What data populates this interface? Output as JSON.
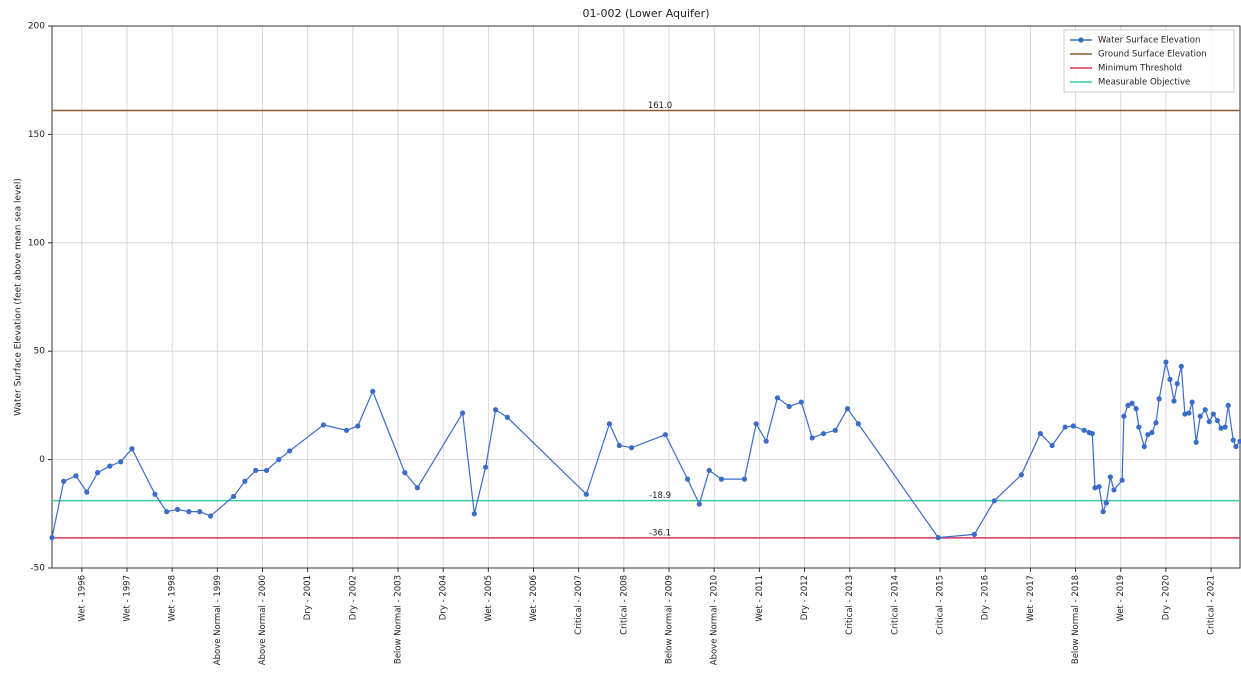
{
  "chart_data": {
    "type": "line",
    "title": "01-002 (Lower Aquifer)",
    "y_label": "Water Surface Elevation (feet above mean sea level)",
    "xlim": [
      1995.34,
      2021.64
    ],
    "ylim": [
      -50,
      200
    ],
    "yticks": [
      -50,
      0,
      50,
      100,
      150,
      200
    ],
    "grid": true,
    "legend": "upper right",
    "xticks": [
      {
        "value": 1996,
        "label": "Wet - 1996"
      },
      {
        "value": 1997,
        "label": "Wet - 1997"
      },
      {
        "value": 1998,
        "label": "Wet - 1998"
      },
      {
        "value": 1999,
        "label": "Above Normal - 1999"
      },
      {
        "value": 2000,
        "label": "Above Normal - 2000"
      },
      {
        "value": 2001,
        "label": "Dry - 2001"
      },
      {
        "value": 2002,
        "label": "Dry - 2002"
      },
      {
        "value": 2003,
        "label": "Below Normal - 2003"
      },
      {
        "value": 2004,
        "label": "Dry - 2004"
      },
      {
        "value": 2005,
        "label": "Wet - 2005"
      },
      {
        "value": 2006,
        "label": "Wet - 2006"
      },
      {
        "value": 2007,
        "label": "Critical - 2007"
      },
      {
        "value": 2008,
        "label": "Critical - 2008"
      },
      {
        "value": 2009,
        "label": "Below Normal - 2009"
      },
      {
        "value": 2010,
        "label": "Above Normal - 2010"
      },
      {
        "value": 2011,
        "label": "Wet - 2011"
      },
      {
        "value": 2012,
        "label": "Dry - 2012"
      },
      {
        "value": 2013,
        "label": "Critical - 2013"
      },
      {
        "value": 2014,
        "label": "Critical - 2014"
      },
      {
        "value": 2015,
        "label": "Critical - 2015"
      },
      {
        "value": 2016,
        "label": "Dry - 2016"
      },
      {
        "value": 2017,
        "label": "Wet - 2017"
      },
      {
        "value": 2018,
        "label": "Below Normal - 2018"
      },
      {
        "value": 2019,
        "label": "Wet - 2019"
      },
      {
        "value": 2020,
        "label": "Dry - 2020"
      },
      {
        "value": 2021,
        "label": "Critical - 2021"
      }
    ],
    "series": [
      {
        "name": "Water Surface Elevation",
        "color": "#3b6cc9",
        "x": [
          1995.34,
          1995.6,
          1995.87,
          1996.11,
          1996.35,
          1996.62,
          1996.86,
          1997.11,
          1997.62,
          1997.88,
          1998.12,
          1998.37,
          1998.61,
          1998.85,
          1999.36,
          1999.61,
          1999.85,
          2000.09,
          2000.36,
          2000.6,
          2001.35,
          2001.86,
          2002.11,
          2002.44,
          2003.15,
          2003.43,
          2004.43,
          2004.69,
          2004.94,
          2005.16,
          2005.42,
          2007.17,
          2007.68,
          2007.9,
          2008.17,
          2008.92,
          2009.41,
          2009.67,
          2009.89,
          2010.16,
          2010.67,
          2010.93,
          2011.15,
          2011.4,
          2011.66,
          2011.93,
          2012.17,
          2012.42,
          2012.68,
          2012.95,
          2013.19,
          2014.96,
          2015.76,
          2016.2,
          2016.8,
          2017.22,
          2017.48,
          2017.77,
          2017.95,
          2018.19,
          2018.3,
          2018.37,
          2018.43,
          2018.52,
          2018.61,
          2018.68,
          2018.77,
          2018.85,
          2019.03,
          2019.07,
          2019.16,
          2019.25,
          2019.34,
          2019.4,
          2019.52,
          2019.6,
          2019.69,
          2019.78,
          2019.85,
          2020.0,
          2020.09,
          2020.18,
          2020.25,
          2020.34,
          2020.42,
          2020.51,
          2020.58,
          2020.67,
          2020.76,
          2020.87,
          2020.96,
          2021.05,
          2021.14,
          2021.22,
          2021.31,
          2021.38,
          2021.49,
          2021.55,
          2021.64
        ],
        "values": [
          -36,
          -10,
          -7.5,
          -15,
          -6,
          -3,
          -1,
          5,
          -16,
          -24,
          -23,
          -24,
          -24,
          -26,
          -17,
          -10,
          -5,
          -5,
          0,
          4,
          16,
          13.5,
          15.5,
          31.5,
          -6,
          -13,
          21.5,
          -25,
          -3.5,
          23,
          19.5,
          -16,
          16.5,
          6.5,
          5.5,
          11.5,
          -9,
          -20.5,
          -5,
          -9,
          -9,
          16.5,
          8.5,
          28.5,
          24.5,
          26.5,
          10,
          12,
          13.5,
          23.5,
          16.5,
          -36,
          -34.5,
          -19,
          -7,
          12,
          6.5,
          15,
          15.5,
          13.5,
          12.5,
          12,
          -13,
          -12.5,
          -24,
          -20,
          -8,
          -14,
          -9.5,
          20,
          25,
          26,
          23.5,
          15,
          6,
          11.5,
          12.5,
          17,
          28,
          45,
          37,
          27,
          35,
          43,
          21,
          21.5,
          26.5,
          8,
          20,
          23,
          17.5,
          21,
          18,
          14.5,
          15,
          25,
          9,
          6,
          8.5
        ]
      }
    ],
    "reference_lines": [
      {
        "name": "Ground Surface Elevation",
        "color": "#8b5a2b",
        "value": 161,
        "value_label": "161.0"
      },
      {
        "name": "Minimum Threshold",
        "color": "#d9345a",
        "value": -36.1,
        "value_label": "-36.1"
      },
      {
        "name": "Measurable Objective",
        "color": "#3cc9a4",
        "value": -18.9,
        "value_label": "-18.9"
      }
    ]
  }
}
